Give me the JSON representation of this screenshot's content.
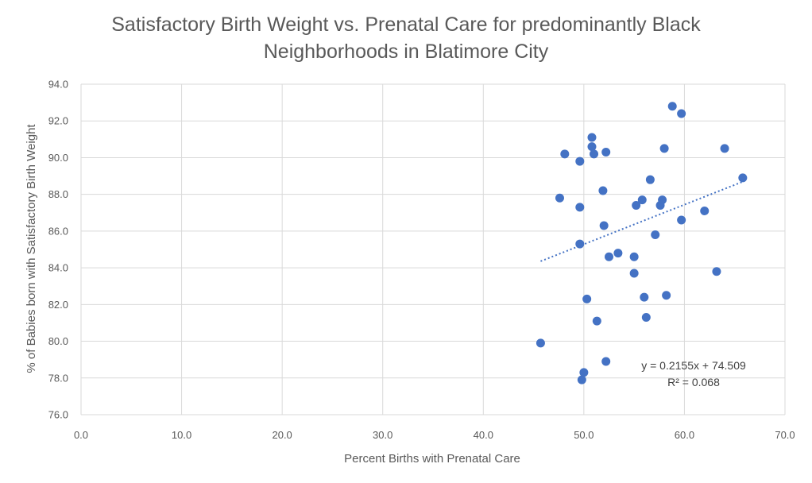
{
  "chart_data": {
    "type": "scatter",
    "title": [
      "Satisfactory Birth Weight vs. Prenatal Care for predominantly Black",
      "Neighborhoods in Blatimore City"
    ],
    "xlabel": "Percent Births with Prenatal Care",
    "ylabel": "% of Babies born with Satisfactory Birth Weight",
    "xlim": [
      0,
      70
    ],
    "ylim": [
      76,
      94
    ],
    "x_ticks": [
      "0.0",
      "10.0",
      "20.0",
      "30.0",
      "40.0",
      "50.0",
      "60.0",
      "70.0"
    ],
    "y_ticks": [
      "76.0",
      "78.0",
      "80.0",
      "82.0",
      "84.0",
      "86.0",
      "88.0",
      "90.0",
      "92.0",
      "94.0"
    ],
    "grid": true,
    "marker_color": "#4472C4",
    "trendline": {
      "type": "linear",
      "slope": 0.2155,
      "intercept": 74.509,
      "x_range": [
        45.7,
        65.8
      ],
      "style": "dotted",
      "color": "#4472C4",
      "equation_label": "y = 0.2155x + 74.509",
      "r2_label": "R² = 0.068"
    },
    "points": [
      {
        "x": 45.7,
        "y": 79.9
      },
      {
        "x": 47.6,
        "y": 87.8
      },
      {
        "x": 48.1,
        "y": 90.2
      },
      {
        "x": 49.6,
        "y": 89.8
      },
      {
        "x": 49.6,
        "y": 87.3
      },
      {
        "x": 49.6,
        "y": 85.3
      },
      {
        "x": 49.8,
        "y": 77.9
      },
      {
        "x": 50.0,
        "y": 78.3
      },
      {
        "x": 50.3,
        "y": 82.3
      },
      {
        "x": 50.8,
        "y": 91.1
      },
      {
        "x": 50.8,
        "y": 90.6
      },
      {
        "x": 51.0,
        "y": 90.2
      },
      {
        "x": 51.3,
        "y": 81.1
      },
      {
        "x": 51.9,
        "y": 88.2
      },
      {
        "x": 52.0,
        "y": 86.3
      },
      {
        "x": 52.2,
        "y": 90.3
      },
      {
        "x": 52.2,
        "y": 78.9
      },
      {
        "x": 52.5,
        "y": 84.6
      },
      {
        "x": 53.4,
        "y": 84.8
      },
      {
        "x": 55.0,
        "y": 84.6
      },
      {
        "x": 55.0,
        "y": 83.7
      },
      {
        "x": 55.2,
        "y": 87.4
      },
      {
        "x": 55.8,
        "y": 87.7
      },
      {
        "x": 56.0,
        "y": 82.4
      },
      {
        "x": 56.2,
        "y": 81.3
      },
      {
        "x": 56.6,
        "y": 88.8
      },
      {
        "x": 57.1,
        "y": 85.8
      },
      {
        "x": 57.6,
        "y": 87.4
      },
      {
        "x": 57.8,
        "y": 87.7
      },
      {
        "x": 58.0,
        "y": 90.5
      },
      {
        "x": 58.2,
        "y": 82.5
      },
      {
        "x": 58.8,
        "y": 92.8
      },
      {
        "x": 59.7,
        "y": 92.4
      },
      {
        "x": 59.7,
        "y": 86.6
      },
      {
        "x": 62.0,
        "y": 87.1
      },
      {
        "x": 63.2,
        "y": 83.8
      },
      {
        "x": 64.0,
        "y": 90.5
      },
      {
        "x": 65.8,
        "y": 88.9
      }
    ]
  }
}
